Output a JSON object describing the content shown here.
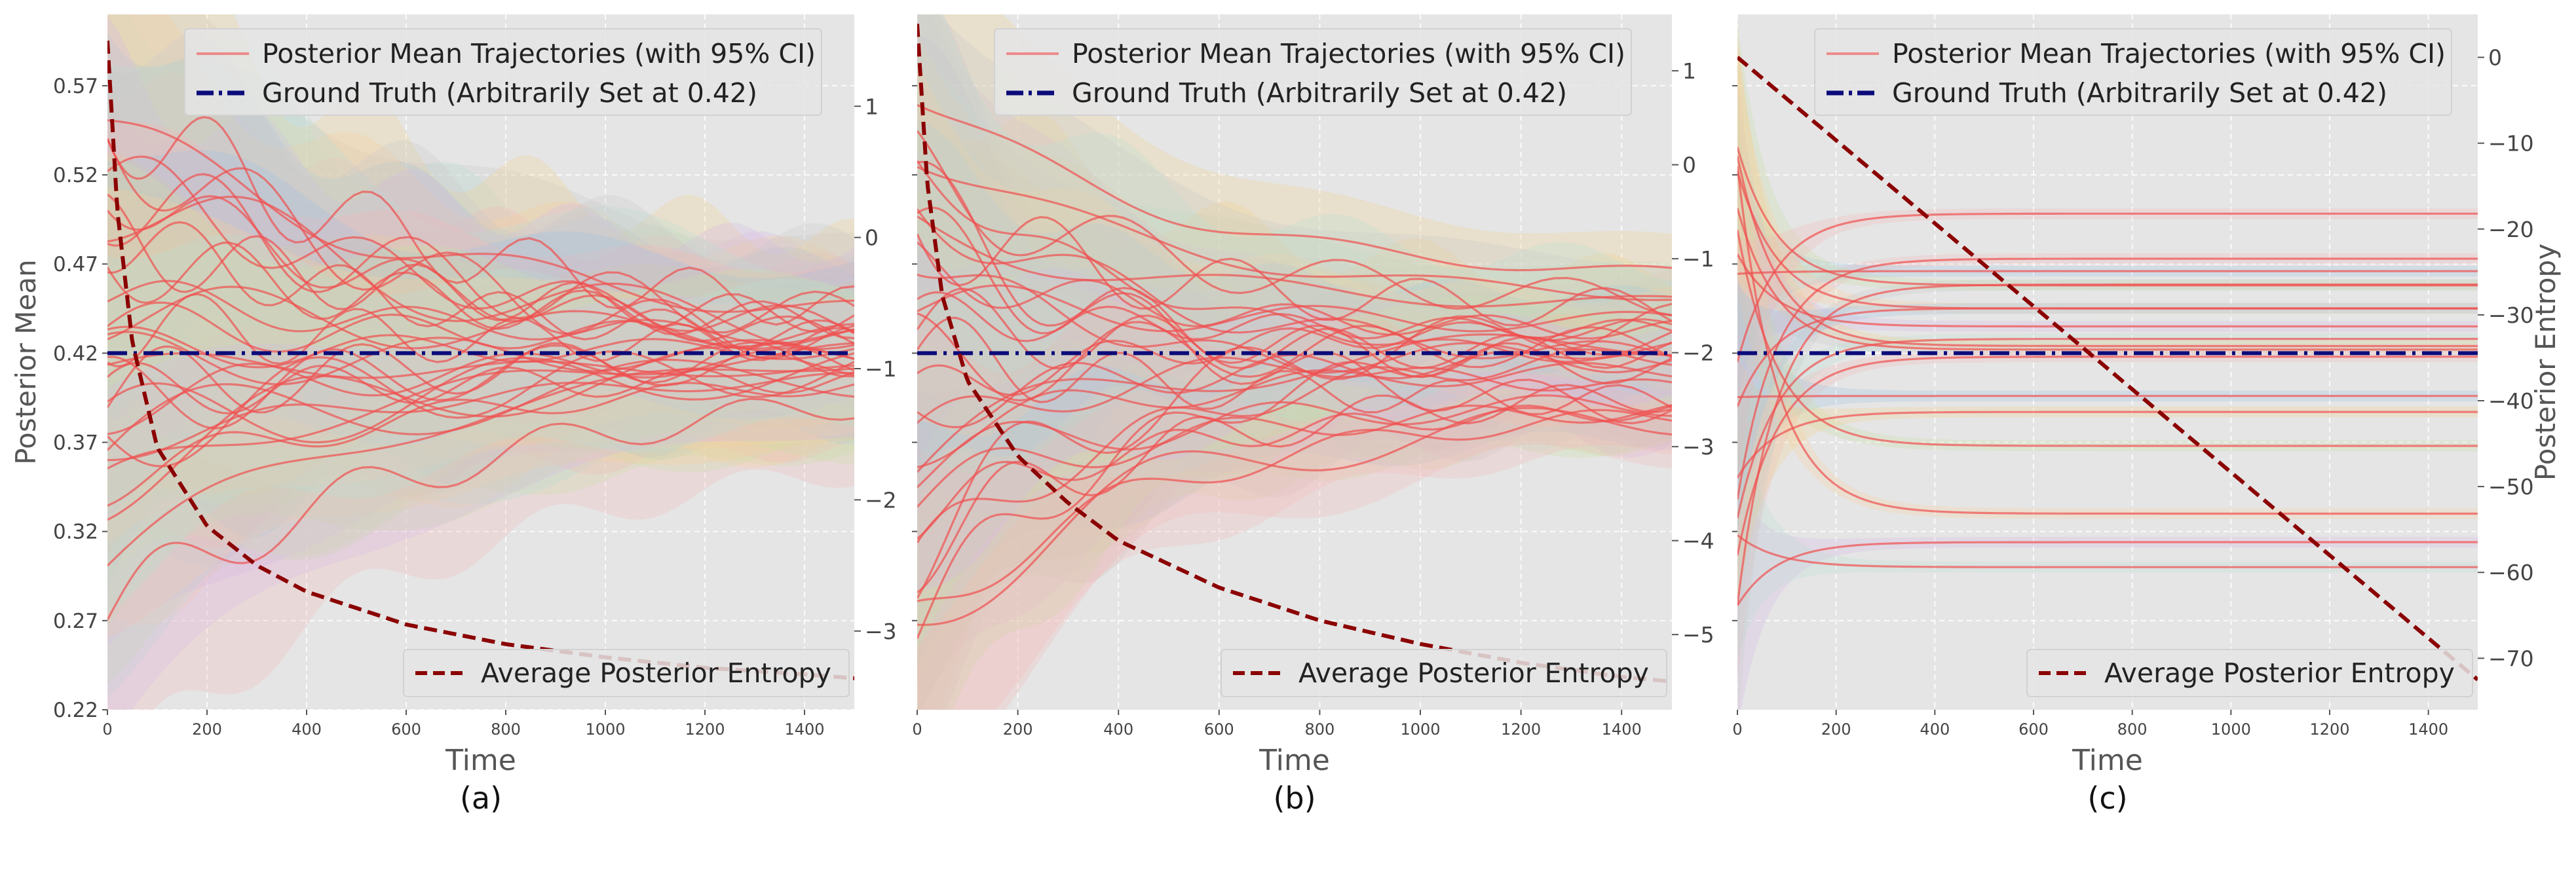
{
  "chart_data": [
    {
      "type": "line",
      "caption": "(a)",
      "xlabel": "Time",
      "ylabel": "Posterior Mean",
      "y2label": "",
      "xlim": [
        0,
        1500
      ],
      "ylim": [
        0.22,
        0.61
      ],
      "y2lim": [
        -3.6,
        1.7
      ],
      "xticks": [
        0,
        200,
        400,
        600,
        800,
        1000,
        1200,
        1400
      ],
      "yticks": [
        0.22,
        0.27,
        0.32,
        0.37,
        0.42,
        0.47,
        0.52,
        0.57
      ],
      "y2ticks": [
        1,
        0,
        -1,
        -2,
        -3
      ],
      "grid": true,
      "legend_upper": {
        "placement": "top-center",
        "entries": [
          "Posterior Mean Trajectories (with 95% CI)",
          "Ground Truth (Arbitrarily Set at 0.42)"
        ]
      },
      "legend_lower": {
        "placement": "bottom-right",
        "entries": [
          "Average Posterior Entropy"
        ]
      },
      "ground_truth": 0.42,
      "entropy": {
        "x": [
          0,
          20,
          50,
          100,
          200,
          300,
          400,
          600,
          800,
          1000,
          1200,
          1400,
          1500
        ],
        "y": [
          1.5,
          0.2,
          -0.8,
          -1.6,
          -2.2,
          -2.5,
          -2.7,
          -2.95,
          -3.1,
          -3.2,
          -3.28,
          -3.33,
          -3.36
        ]
      },
      "trajectories": {
        "count": 30,
        "settle_time": 700,
        "start_spread": 0.15,
        "final_spread": 0.015,
        "ci_start": 0.1,
        "ci_end": 0.035
      }
    },
    {
      "type": "line",
      "caption": "(b)",
      "xlabel": "Time",
      "ylabel": "",
      "y2label": "",
      "xlim": [
        0,
        1500
      ],
      "ylim": [
        0.22,
        0.61
      ],
      "y2lim": [
        -5.8,
        1.6
      ],
      "xticks": [
        0,
        200,
        400,
        600,
        800,
        1000,
        1200,
        1400
      ],
      "yticks": [],
      "y2ticks": [
        1,
        0,
        -1,
        -2,
        -3,
        -4,
        -5
      ],
      "grid": true,
      "legend_upper": {
        "placement": "top-center",
        "entries": [
          "Posterior Mean Trajectories (with 95% CI)",
          "Ground Truth (Arbitrarily Set at 0.42)"
        ]
      },
      "legend_lower": {
        "placement": "bottom-right",
        "entries": [
          "Average Posterior Entropy"
        ]
      },
      "ground_truth": 0.42,
      "entropy": {
        "x": [
          0,
          20,
          50,
          100,
          200,
          300,
          400,
          600,
          800,
          1000,
          1200,
          1400,
          1500
        ],
        "y": [
          1.5,
          -0.2,
          -1.4,
          -2.3,
          -3.1,
          -3.6,
          -4.0,
          -4.5,
          -4.85,
          -5.1,
          -5.3,
          -5.45,
          -5.5
        ]
      },
      "trajectories": {
        "count": 30,
        "settle_time": 500,
        "start_spread": 0.15,
        "final_spread": 0.04,
        "ci_start": 0.1,
        "ci_end": 0.018
      }
    },
    {
      "type": "line",
      "caption": "(c)",
      "xlabel": "Time",
      "ylabel": "",
      "y2label": "Posterior Entropy",
      "xlim": [
        0,
        1500
      ],
      "ylim": [
        0.22,
        0.61
      ],
      "y2lim": [
        -76,
        5
      ],
      "xticks": [
        0,
        200,
        400,
        600,
        800,
        1000,
        1200,
        1400
      ],
      "yticks": [],
      "y2ticks": [
        0,
        -10,
        -20,
        -30,
        -40,
        -50,
        -60,
        -70
      ],
      "grid": true,
      "legend_upper": {
        "placement": "top-center",
        "entries": [
          "Posterior Mean Trajectories (with 95% CI)",
          "Ground Truth (Arbitrarily Set at 0.42)"
        ]
      },
      "legend_lower": {
        "placement": "bottom-right",
        "entries": [
          "Average Posterior Entropy"
        ]
      },
      "ground_truth": 0.42,
      "entropy": {
        "x": [
          0,
          1500
        ],
        "y": [
          0,
          -72.5
        ]
      },
      "trajectories": {
        "count": 18,
        "settle_time": 80,
        "start_spread": 0.15,
        "final_spread": 0.12,
        "ci_start": 0.07,
        "ci_end": 0.003
      },
      "plateau_levels": [
        0.473,
        0.466,
        0.458,
        0.445,
        0.435,
        0.428,
        0.424,
        0.422,
        0.418,
        0.396,
        0.368,
        0.33,
        0.314,
        0.3
      ]
    }
  ],
  "colors": {
    "axes_bg": "#e5e5e5",
    "grid": "#ffffff",
    "trajectory": "#f05050",
    "ground_truth": "#0b0b7a",
    "entropy": "#8b0000",
    "ci_palette": [
      "#f4b6b6",
      "#9ec2e3",
      "#c9e0a7",
      "#f8cf9e",
      "#d7b6e6",
      "#b9ddd5",
      "#f0d28c",
      "#c9c9c9"
    ]
  }
}
